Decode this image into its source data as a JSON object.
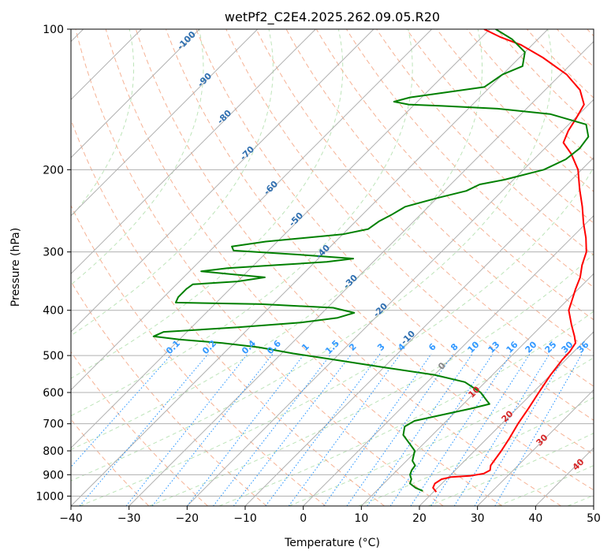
{
  "chart_data": {
    "type": "skew-t",
    "title": "wetPf2_C2E4.2025.262.09.05.R20",
    "xlabel": "Temperature (°C)",
    "ylabel": "Pressure (hPa)",
    "xlim": [
      -40,
      50
    ],
    "ylim": [
      1050,
      100
    ],
    "y_scale": "log",
    "grid": true,
    "x_ticks": [
      -40,
      -30,
      -20,
      -10,
      0,
      10,
      20,
      30,
      40,
      50
    ],
    "x_tick_labels": [
      "−40",
      "−30",
      "−20",
      "−10",
      "0",
      "10",
      "20",
      "30",
      "40",
      "50"
    ],
    "y_ticks": [
      1000,
      900,
      800,
      700,
      600,
      500,
      400,
      300,
      200,
      100
    ],
    "y_tick_labels": [
      "1000",
      "900",
      "800",
      "700",
      "600",
      "500",
      "400",
      "300",
      "200",
      "100"
    ],
    "series": [
      {
        "role": "temperature",
        "color": "#ff0000",
        "points": [
          [
            980,
            20.5
          ],
          [
            960,
            19.2
          ],
          [
            940,
            18.8
          ],
          [
            920,
            19.2
          ],
          [
            910,
            20.5
          ],
          [
            905,
            23.5
          ],
          [
            895,
            25.5
          ],
          [
            880,
            26.0
          ],
          [
            860,
            25.3
          ],
          [
            800,
            24.6
          ],
          [
            750,
            23.8
          ],
          [
            700,
            22.8
          ],
          [
            650,
            22.0
          ],
          [
            600,
            21.0
          ],
          [
            550,
            20.0
          ],
          [
            510,
            19.4
          ],
          [
            490,
            19.3
          ],
          [
            470,
            18.8
          ],
          [
            455,
            17.5
          ],
          [
            430,
            15.0
          ],
          [
            400,
            12.0
          ],
          [
            380,
            10.8
          ],
          [
            360,
            9.5
          ],
          [
            340,
            8.3
          ],
          [
            320,
            6.5
          ],
          [
            300,
            5.0
          ],
          [
            280,
            2.5
          ],
          [
            260,
            -0.5
          ],
          [
            240,
            -3.5
          ],
          [
            220,
            -7.0
          ],
          [
            200,
            -10.6
          ],
          [
            185,
            -14.5
          ],
          [
            175,
            -17.8
          ],
          [
            165,
            -19.0
          ],
          [
            155,
            -19.8
          ],
          [
            145,
            -20.8
          ],
          [
            135,
            -24.0
          ],
          [
            125,
            -29.0
          ],
          [
            115,
            -36.0
          ],
          [
            108,
            -42.0
          ],
          [
            104,
            -46.8
          ],
          [
            100,
            -51.0
          ]
        ]
      },
      {
        "role": "dewpoint",
        "color": "#008000",
        "points": [
          [
            975,
            18.0
          ],
          [
            960,
            16.2
          ],
          [
            940,
            14.5
          ],
          [
            920,
            14.0
          ],
          [
            900,
            13.0
          ],
          [
            880,
            12.5
          ],
          [
            860,
            12.3
          ],
          [
            840,
            11.0
          ],
          [
            800,
            9.7
          ],
          [
            770,
            7.4
          ],
          [
            740,
            5.0
          ],
          [
            710,
            3.8
          ],
          [
            690,
            4.5
          ],
          [
            670,
            8.2
          ],
          [
            650,
            12.0
          ],
          [
            635,
            14.5
          ],
          [
            620,
            13.0
          ],
          [
            600,
            11.0
          ],
          [
            570,
            6.5
          ],
          [
            550,
            0.0
          ],
          [
            530,
            -10.0
          ],
          [
            510,
            -20.0
          ],
          [
            495,
            -28.0
          ],
          [
            480,
            -35.0
          ],
          [
            470,
            -42.0
          ],
          [
            462,
            -50.0
          ],
          [
            455,
            -55.0
          ],
          [
            445,
            -54.0
          ],
          [
            435,
            -42.0
          ],
          [
            425,
            -32.0
          ],
          [
            415,
            -26.5
          ],
          [
            405,
            -24.5
          ],
          [
            395,
            -29.0
          ],
          [
            388,
            -42.0
          ],
          [
            385,
            -57.0
          ],
          [
            375,
            -57.5
          ],
          [
            360,
            -57.5
          ],
          [
            352,
            -57.2
          ],
          [
            347,
            -50.0
          ],
          [
            340,
            -46.0
          ],
          [
            335,
            -52.0
          ],
          [
            330,
            -58.0
          ],
          [
            325,
            -54.0
          ],
          [
            320,
            -46.0
          ],
          [
            315,
            -38.0
          ],
          [
            310,
            -34.0
          ],
          [
            304,
            -44.0
          ],
          [
            298,
            -56.0
          ],
          [
            292,
            -57.0
          ],
          [
            285,
            -52.0
          ],
          [
            275,
            -40.0
          ],
          [
            268,
            -36.5
          ],
          [
            258,
            -36.0
          ],
          [
            250,
            -35.0
          ],
          [
            240,
            -34.0
          ],
          [
            230,
            -30.0
          ],
          [
            222,
            -26.2
          ],
          [
            215,
            -25.0
          ],
          [
            210,
            -21.5
          ],
          [
            200,
            -16.5
          ],
          [
            190,
            -14.5
          ],
          [
            180,
            -14.0
          ],
          [
            170,
            -14.5
          ],
          [
            160,
            -17.0
          ],
          [
            152,
            -25.0
          ],
          [
            148,
            -35.0
          ],
          [
            146,
            -45.0
          ],
          [
            145,
            -51.0
          ],
          [
            143,
            -54.0
          ],
          [
            140,
            -52.0
          ],
          [
            133,
            -41.0
          ],
          [
            125,
            -40.0
          ],
          [
            120,
            -38.0
          ],
          [
            112,
            -40.0
          ],
          [
            105,
            -44.5
          ],
          [
            100,
            -49.0
          ]
        ]
      }
    ],
    "reference_lines": {
      "isotherms": {
        "color": "#b0b0b0"
      },
      "dry_adiabats": {
        "color": "#f4a582"
      },
      "moist_adiabats": {
        "color": "#6baed6"
      },
      "mixing_ratio_lines": {
        "color": "#1e90ff"
      },
      "isopleths": {
        "color": "#a1d99b"
      }
    },
    "annotations": {
      "mixing_ratio_labels": [
        "0.1",
        "0.2",
        "0.4",
        "0.6",
        "1",
        "1.5",
        "2",
        "3",
        "4",
        "6",
        "8",
        "10",
        "13",
        "16",
        "20",
        "25",
        "30",
        "36"
      ],
      "dark_blue_labels": [
        "-100",
        "-90",
        "-80",
        "-70",
        "-60",
        "-50",
        "-40",
        "-30",
        "-20",
        "-10"
      ],
      "grey_labels": [
        "0"
      ],
      "red_labels": [
        "10",
        "20",
        "30",
        "40"
      ]
    }
  }
}
